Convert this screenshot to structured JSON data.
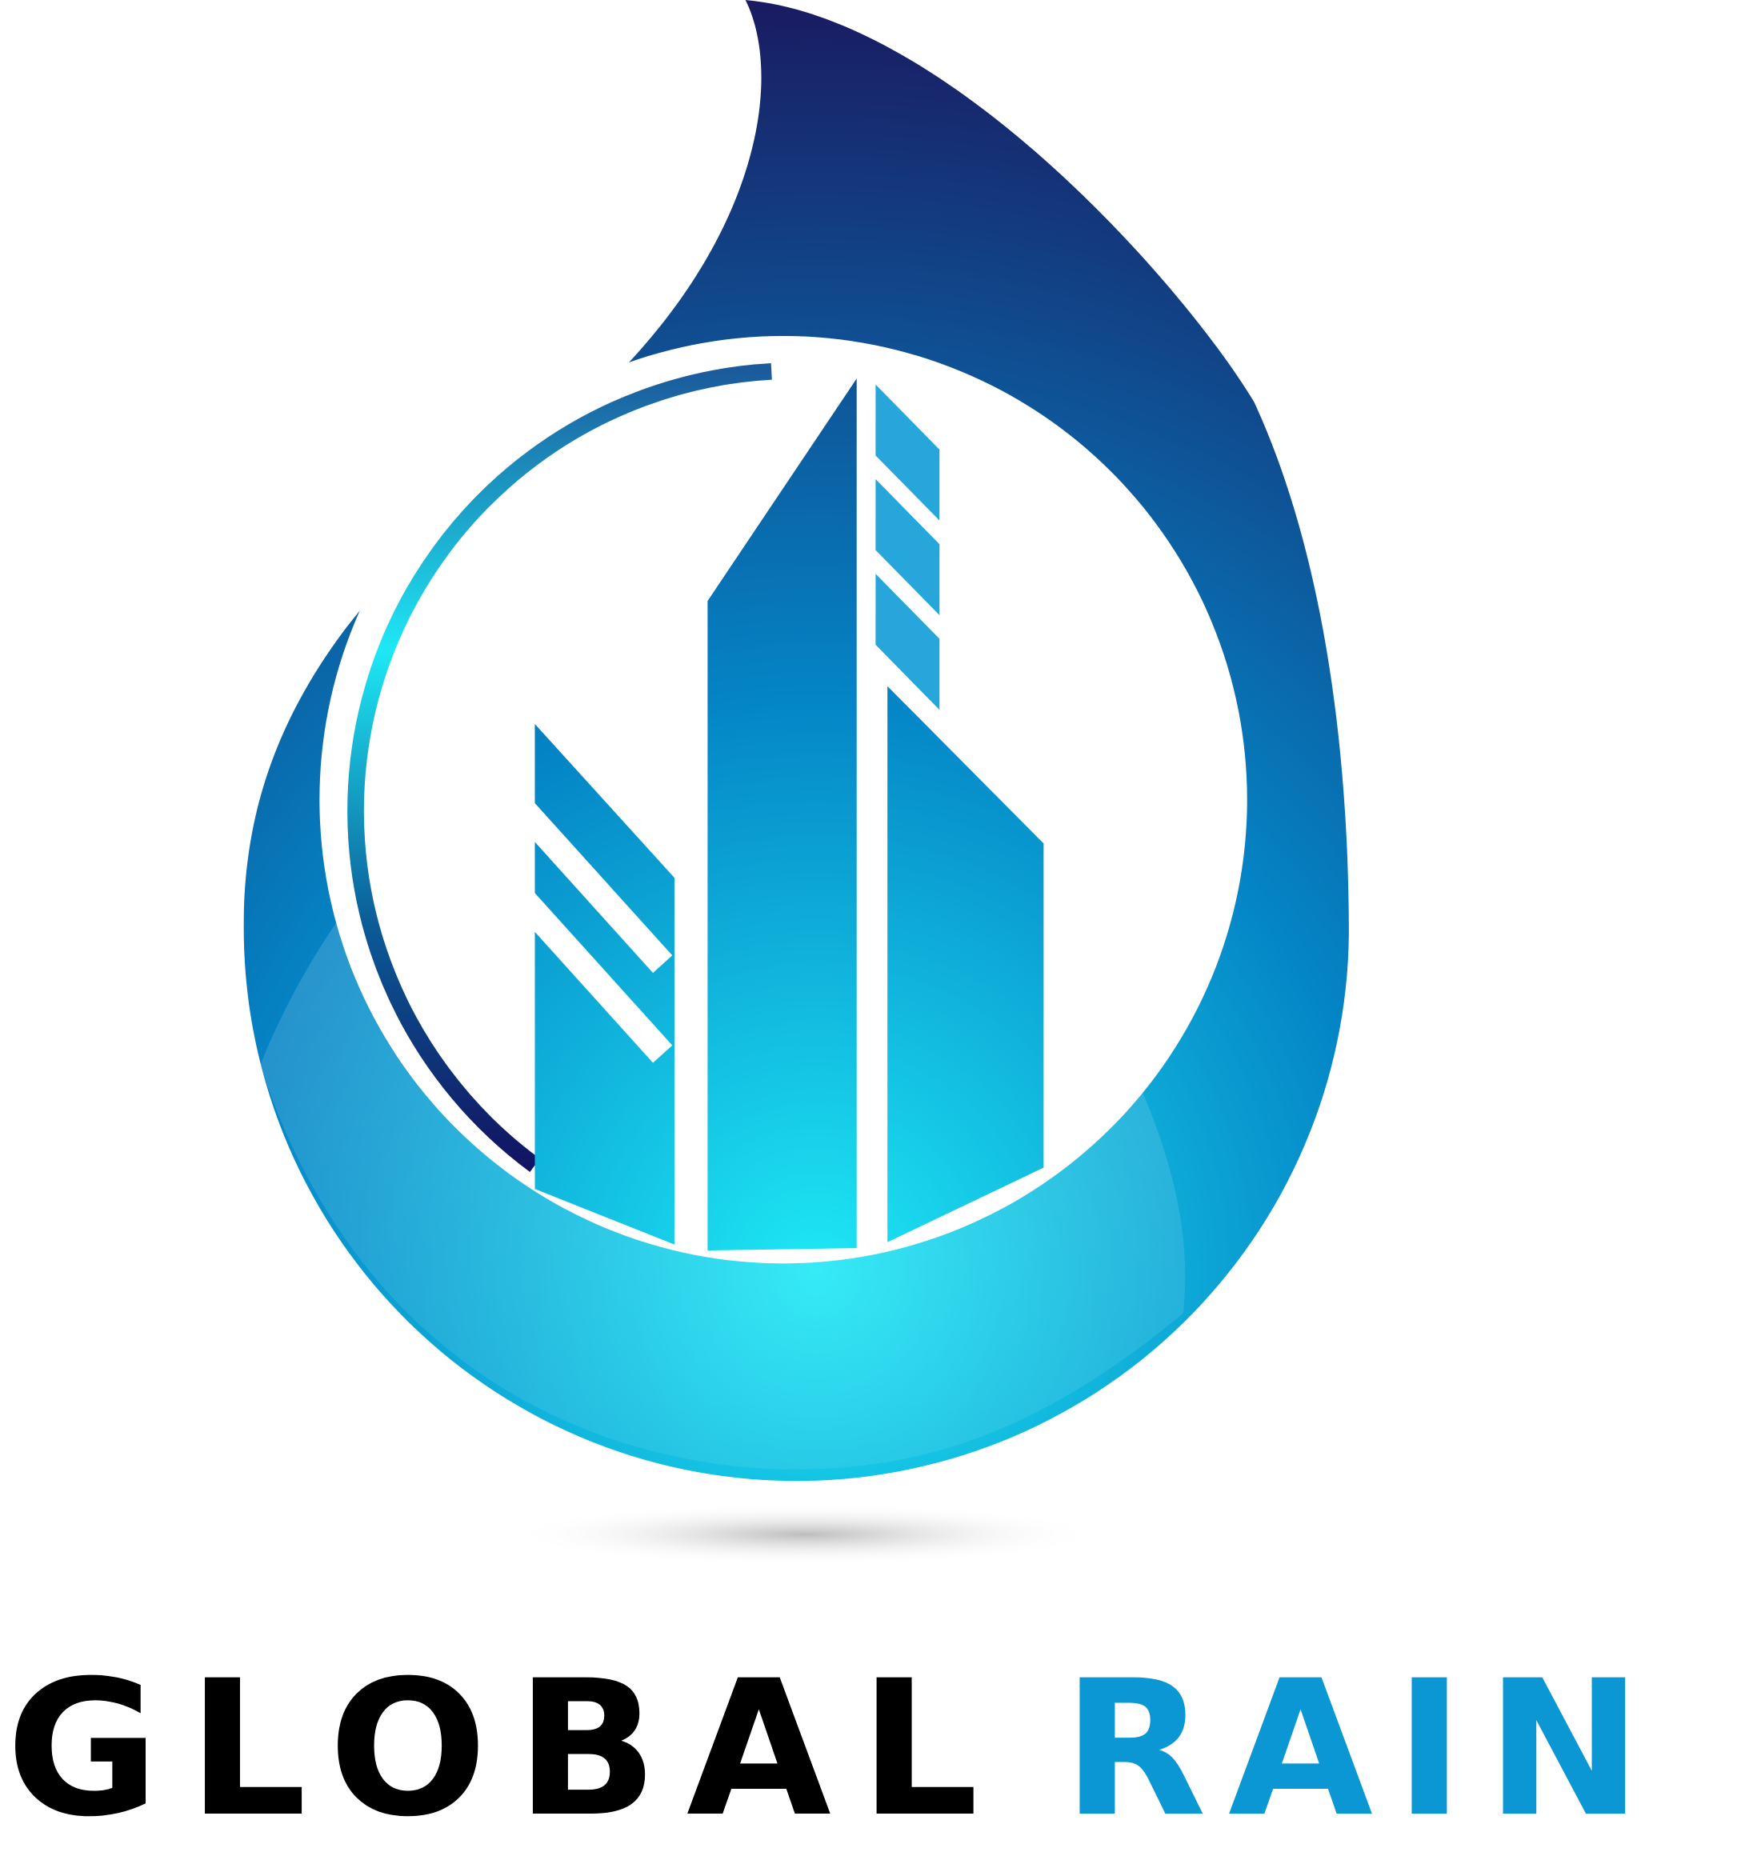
{
  "logo": {
    "wordmark": {
      "first": "GLOBAL",
      "second": "RAIN"
    }
  }
}
